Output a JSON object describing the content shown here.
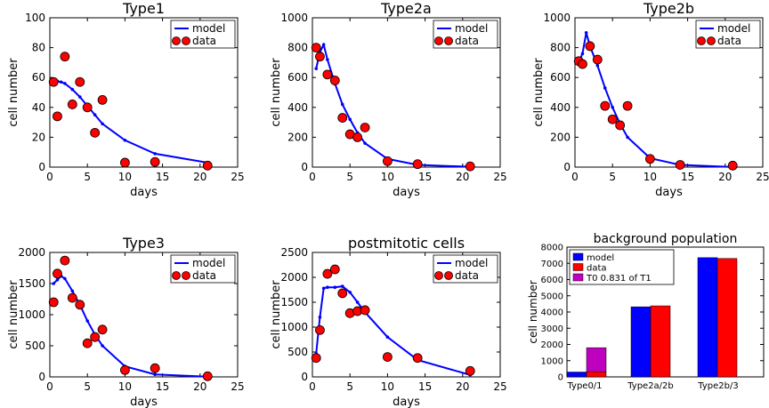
{
  "chart_data": [
    {
      "type": "line",
      "title": "Type1",
      "xlabel": "days",
      "ylabel": "cell number",
      "xlim": [
        0,
        25
      ],
      "ylim": [
        0,
        100
      ],
      "xticks": [
        "0",
        "5",
        "10",
        "15",
        "20",
        "25"
      ],
      "yticks": [
        "0",
        "20",
        "40",
        "60",
        "80",
        "100"
      ],
      "legend": [
        "model",
        "data"
      ],
      "legend_position": "top-right",
      "model": {
        "x": [
          0.5,
          1,
          1.5,
          2,
          3,
          4,
          5,
          6,
          7,
          10,
          14,
          21
        ],
        "y": [
          57,
          57.5,
          57,
          56,
          52,
          47,
          41,
          35,
          29,
          18,
          9,
          3
        ]
      },
      "data": {
        "x": [
          0.5,
          1,
          2,
          3,
          4,
          5,
          6,
          7,
          10,
          14,
          21
        ],
        "y": [
          57,
          34,
          74,
          42,
          57,
          40,
          23,
          45,
          3,
          3.5,
          1
        ]
      }
    },
    {
      "type": "line",
      "title": "Type2a",
      "xlabel": "days",
      "ylabel": "cell number",
      "xlim": [
        0,
        25
      ],
      "ylim": [
        0,
        1000
      ],
      "xticks": [
        "0",
        "5",
        "10",
        "15",
        "20",
        "25"
      ],
      "yticks": [
        "0",
        "200",
        "400",
        "600",
        "800",
        "1000"
      ],
      "legend": [
        "model",
        "data"
      ],
      "legend_position": "top-right",
      "model": {
        "x": [
          0.5,
          1,
          1.5,
          2,
          3,
          4,
          5,
          6,
          7,
          10,
          14,
          21
        ],
        "y": [
          660,
          770,
          820,
          720,
          560,
          420,
          320,
          230,
          160,
          55,
          15,
          2
        ]
      },
      "data": {
        "x": [
          0.5,
          1,
          2,
          3,
          4,
          5,
          6,
          7,
          10,
          14,
          21
        ],
        "y": [
          800,
          740,
          620,
          580,
          330,
          220,
          200,
          265,
          40,
          20,
          5
        ]
      }
    },
    {
      "type": "line",
      "title": "Type2b",
      "xlabel": "days",
      "ylabel": "cell number",
      "xlim": [
        0,
        25
      ],
      "ylim": [
        0,
        1000
      ],
      "xticks": [
        "0",
        "5",
        "10",
        "15",
        "20",
        "25"
      ],
      "yticks": [
        "0",
        "200",
        "400",
        "600",
        "800",
        "1000"
      ],
      "legend": [
        "model",
        "data"
      ],
      "legend_position": "top-right",
      "model": {
        "x": [
          0.5,
          1,
          1.5,
          2,
          3,
          4,
          5,
          6,
          7,
          10,
          14,
          21
        ],
        "y": [
          700,
          760,
          900,
          810,
          680,
          530,
          400,
          290,
          200,
          60,
          15,
          1
        ]
      },
      "data": {
        "x": [
          0.5,
          1,
          2,
          3,
          4,
          5,
          6,
          7,
          10,
          14,
          21
        ],
        "y": [
          710,
          690,
          810,
          720,
          410,
          320,
          280,
          410,
          55,
          15,
          10
        ]
      }
    },
    {
      "type": "line",
      "title": "Type3",
      "xlabel": "days",
      "ylabel": "cell number",
      "xlim": [
        0,
        25
      ],
      "ylim": [
        0,
        2000
      ],
      "xticks": [
        "0",
        "5",
        "10",
        "15",
        "20",
        "25"
      ],
      "yticks": [
        "0",
        "500",
        "1000",
        "1500",
        "2000"
      ],
      "legend": [
        "model",
        "data"
      ],
      "legend_position": "top-right",
      "model": {
        "x": [
          0.5,
          1,
          1.5,
          2,
          3,
          4,
          5,
          6,
          7,
          10,
          14,
          21
        ],
        "y": [
          1500,
          1560,
          1620,
          1580,
          1380,
          1160,
          900,
          680,
          500,
          170,
          40,
          3
        ]
      },
      "data": {
        "x": [
          0.5,
          1,
          2,
          3,
          4,
          5,
          6,
          7,
          10,
          14,
          21
        ],
        "y": [
          1200,
          1660,
          1870,
          1270,
          1160,
          540,
          640,
          760,
          110,
          140,
          10
        ]
      }
    },
    {
      "type": "line",
      "title": "postmitotic cells",
      "xlabel": "days",
      "ylabel": "cell number",
      "xlim": [
        0,
        25
      ],
      "ylim": [
        0,
        2500
      ],
      "xticks": [
        "0",
        "5",
        "10",
        "15",
        "20",
        "25"
      ],
      "yticks": [
        "0",
        "500",
        "1000",
        "1500",
        "2000",
        "2500"
      ],
      "legend": [
        "model",
        "data"
      ],
      "legend_position": "top-right",
      "model": {
        "x": [
          0.5,
          1,
          1.5,
          2,
          3,
          4,
          5,
          6,
          7,
          10,
          14,
          21
        ],
        "y": [
          470,
          1200,
          1780,
          1800,
          1800,
          1820,
          1700,
          1500,
          1300,
          800,
          340,
          40
        ]
      },
      "data": {
        "x": [
          0.5,
          1,
          2,
          3,
          4,
          5,
          6,
          7,
          10,
          14,
          21
        ],
        "y": [
          380,
          940,
          2070,
          2160,
          1680,
          1280,
          1320,
          1340,
          400,
          380,
          120
        ]
      }
    },
    {
      "type": "bar",
      "title": "background population",
      "xlabel": "",
      "ylabel": "cell number",
      "ylim": [
        0,
        8000
      ],
      "yticks": [
        "0",
        "1000",
        "2000",
        "3000",
        "4000",
        "5000",
        "6000",
        "7000",
        "8000"
      ],
      "categories": [
        "Type0/1",
        "Type2a/2b",
        "Type2b/3"
      ],
      "legend_position": "top-left",
      "series": [
        {
          "name": "model",
          "color": "#0000ff",
          "values": [
            300,
            4320,
            7350
          ]
        },
        {
          "name": "data",
          "color": "#ff0000",
          "values": [
            320,
            4380,
            7300
          ]
        },
        {
          "name": "T0 0.831 of T1",
          "color": "#bf00bf",
          "values": [
            1480,
            0,
            0
          ],
          "stacked_on": "data"
        }
      ]
    }
  ],
  "colors": {
    "model": "#0000ff",
    "data": "#ff0000",
    "t0": "#bf00bf"
  }
}
